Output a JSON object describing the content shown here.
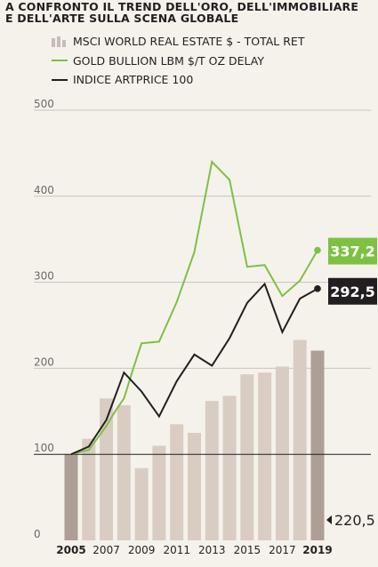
{
  "header": {
    "title_line1": "A CONFRONTO IL TREND DELL'ORO, DELL'IMMOBILIARE",
    "title_line2": "E DELL'ARTE SULLA SCENA GLOBALE"
  },
  "colors": {
    "bars": "#d9cdc3",
    "bars_highlight": "#ad9f96",
    "gold_line": "#7dc143",
    "art_line": "#231f20",
    "grid": "#c9c3bc",
    "baseline": "#231f20",
    "background": "#f5f2ec"
  },
  "chart_data": {
    "type": "bar+line",
    "legend": [
      {
        "label": "MSCI WORLD REAL ESTATE $ - TOTAL RET",
        "kind": "bars"
      },
      {
        "label": "GOLD BULLION LBM $/T OZ DELAY",
        "kind": "line-green"
      },
      {
        "label": "INDICE ARTPRICE 100",
        "kind": "line-black"
      }
    ],
    "ylim": [
      0,
      500
    ],
    "yticks": [
      0,
      100,
      200,
      300,
      400,
      500
    ],
    "xlim": [
      2005,
      2019
    ],
    "xticks": [
      "2005",
      "2007",
      "2009",
      "2011",
      "2013",
      "2015",
      "2017",
      "2019"
    ],
    "bars": {
      "name": "MSCI WORLD REAL ESTATE $ - TOTAL RET",
      "x": [
        2005,
        2006,
        2007,
        2008,
        2009,
        2010,
        2011,
        2012,
        2013,
        2014,
        2015,
        2016,
        2017,
        2018,
        2019
      ],
      "values": [
        100,
        118,
        165,
        157,
        84,
        110,
        135,
        125,
        162,
        168,
        193,
        195,
        202,
        233,
        220.5
      ]
    },
    "series": [
      {
        "name": "GOLD BULLION LBM $/T OZ DELAY",
        "x": [
          2005,
          2006,
          2007,
          2007.5,
          2008,
          2008.5,
          2009,
          2010,
          2011,
          2012,
          2013,
          2014,
          2015,
          2016,
          2017,
          2018,
          2019
        ],
        "values": [
          100,
          105,
          133,
          150,
          165,
          198,
          229,
          231,
          277,
          335,
          440,
          419,
          318,
          320,
          284,
          302,
          337.2
        ]
      },
      {
        "name": "INDICE ARTPRICE 100",
        "x": [
          2005,
          2006,
          2007,
          2008,
          2009,
          2010,
          2011,
          2012,
          2013,
          2014,
          2015,
          2016,
          2017,
          2018,
          2019
        ],
        "values": [
          100,
          109,
          140,
          195,
          173,
          144,
          185,
          216,
          203,
          235,
          276,
          298,
          242,
          281,
          292.5
        ]
      }
    ],
    "labels": [
      {
        "text": "337,2",
        "series": "GOLD BULLION LBM $/T OZ DELAY"
      },
      {
        "text": "292,5",
        "series": "INDICE ARTPRICE 100"
      },
      {
        "text": "220,5",
        "series": "MSCI WORLD REAL ESTATE $ - TOTAL RET"
      }
    ]
  }
}
